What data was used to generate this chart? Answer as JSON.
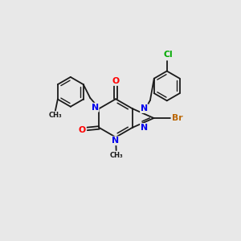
{
  "bg": "#e8e8e8",
  "bc": "#1a1a1a",
  "nc": "#0000ee",
  "oc": "#ff0000",
  "brc": "#bb6600",
  "clc": "#00aa00",
  "figsize": [
    3.0,
    3.0
  ],
  "dpi": 100,
  "xlim": [
    0,
    10
  ],
  "ylim": [
    0,
    10
  ]
}
